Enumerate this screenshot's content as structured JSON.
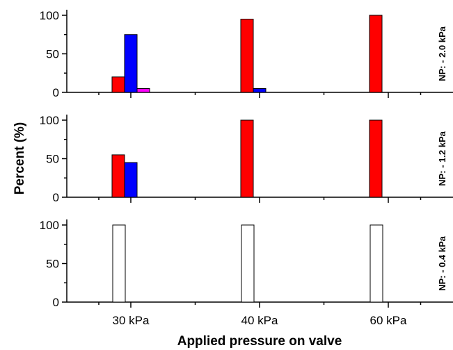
{
  "chart_data": {
    "type": "bar",
    "layout": "three stacked panels sharing the x axis",
    "xlabel": "Applied pressure on valve",
    "ylabel": "Percent (%)",
    "categories": [
      "30 kPa",
      "40 kPa",
      "60 kPa"
    ],
    "ylim": [
      0,
      100
    ],
    "yticks": [
      0,
      50,
      100
    ],
    "yticklabels": [
      "0",
      "50",
      "100"
    ],
    "grid": false,
    "legend": "none",
    "colors": {
      "red": "#ff0000",
      "blue": "#0000ff",
      "magenta": "#ff00ff",
      "white": "#ffffff"
    },
    "panels": [
      {
        "label": "NP: - 2.0 kPa",
        "series": [
          {
            "color": "red",
            "values": [
              20,
              95,
              100
            ]
          },
          {
            "color": "blue",
            "values": [
              75,
              5,
              0
            ]
          },
          {
            "color": "magenta",
            "values": [
              5,
              0,
              0
            ]
          }
        ]
      },
      {
        "label": "NP: - 1.2 kPa",
        "series": [
          {
            "color": "red",
            "values": [
              55,
              100,
              100
            ]
          },
          {
            "color": "blue",
            "values": [
              45,
              0,
              0
            ]
          },
          {
            "color": "magenta",
            "values": [
              0,
              0,
              0
            ]
          }
        ]
      },
      {
        "label": "NP: - 0.4 kPa",
        "series": [
          {
            "color": "white",
            "values": [
              100,
              100,
              100
            ]
          }
        ]
      }
    ]
  }
}
